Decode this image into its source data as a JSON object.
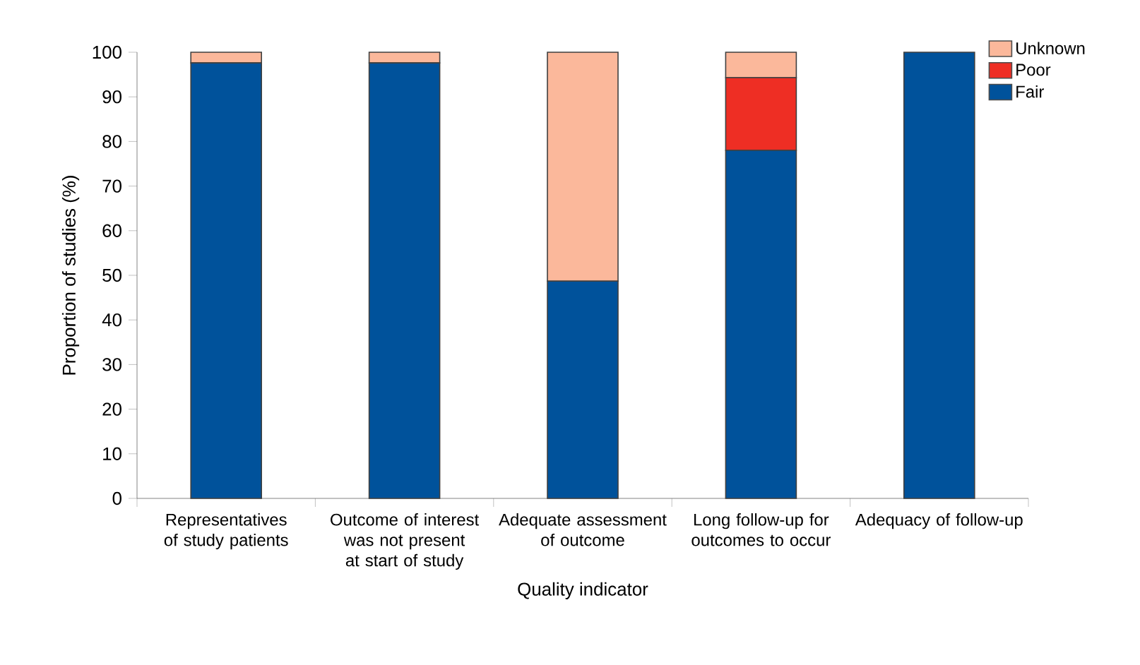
{
  "chart_data": {
    "type": "bar",
    "stacked": true,
    "xlabel": "Quality indicator",
    "ylabel": "Proportion of studies (%)",
    "categories": [
      "Representatives of study patients",
      "Outcome of interest was not present at start of study",
      "Adequate assessment of outcome",
      "Long follow-up for outcomes to occur",
      "Adequacy of follow-up"
    ],
    "series": [
      {
        "name": "Fair",
        "color": "#00529b",
        "values": [
          97.6,
          97.6,
          48.7,
          78,
          100
        ]
      },
      {
        "name": "Poor",
        "color": "#ee2e24",
        "values": [
          0,
          0,
          0,
          16.3,
          0
        ]
      },
      {
        "name": "Unknown",
        "color": "#fbb89b",
        "values": [
          2.4,
          2.4,
          51.3,
          5.7,
          0
        ]
      }
    ],
    "ylim": [
      0,
      100
    ],
    "yticks": [
      0,
      10,
      20,
      30,
      40,
      50,
      60,
      70,
      80,
      90,
      100
    ],
    "legend": "top right",
    "grid": false
  }
}
